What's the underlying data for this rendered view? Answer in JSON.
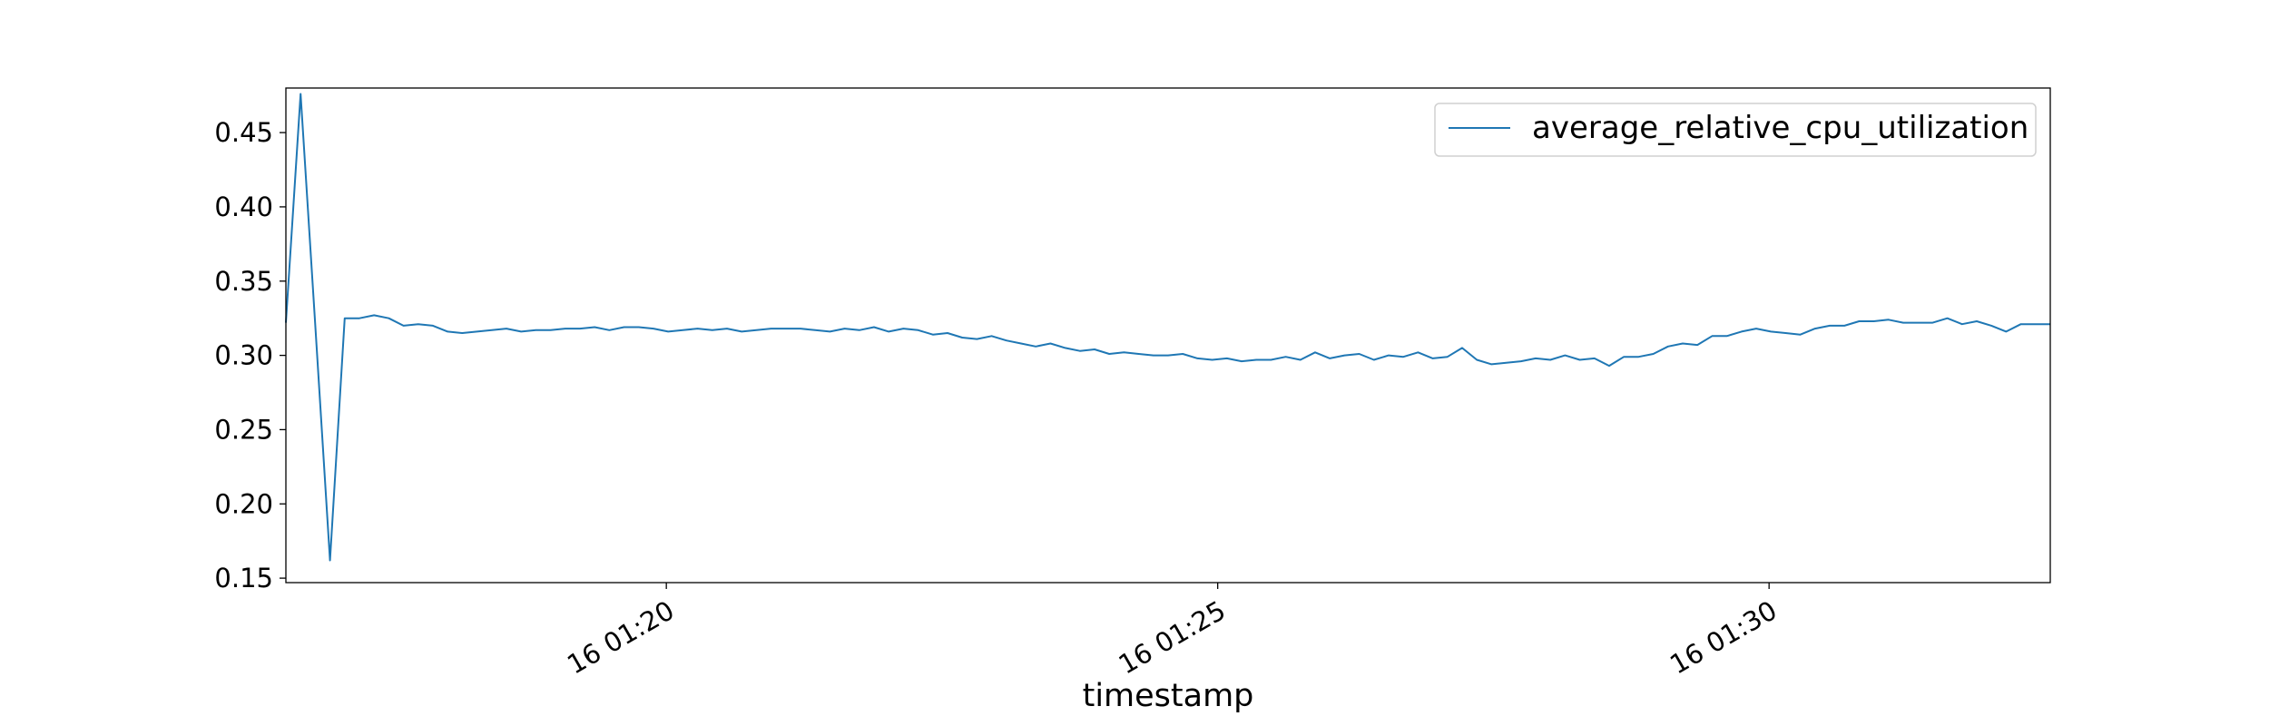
{
  "chart_data": {
    "type": "line",
    "xlabel": "timestamp",
    "ylabel": "",
    "title": "",
    "xlim": [
      "01:16:33",
      "01:32:33"
    ],
    "ylim": [
      0.147,
      0.48
    ],
    "x_ticks": [
      {
        "time": "01:20:00",
        "label": "16 01:20"
      },
      {
        "time": "01:25:00",
        "label": "16 01:25"
      },
      {
        "time": "01:30:00",
        "label": "16 01:30"
      }
    ],
    "y_ticks": [
      {
        "value": 0.15,
        "label": "0.15"
      },
      {
        "value": 0.2,
        "label": "0.20"
      },
      {
        "value": 0.25,
        "label": "0.25"
      },
      {
        "value": 0.3,
        "label": "0.30"
      },
      {
        "value": 0.35,
        "label": "0.35"
      },
      {
        "value": 0.4,
        "label": "0.40"
      },
      {
        "value": 0.45,
        "label": "0.45"
      }
    ],
    "grid": false,
    "legend": {
      "position": "top-right"
    },
    "series": [
      {
        "name": "average_relative_cpu_utilization",
        "color": "#1f77b4",
        "points": [
          [
            "01:16:33",
            0.322
          ],
          [
            "01:16:41",
            0.476
          ],
          [
            "01:16:49",
            0.32
          ],
          [
            "01:16:57",
            0.162
          ],
          [
            "01:17:05",
            0.325
          ],
          [
            "01:17:13",
            0.325
          ],
          [
            "01:17:21",
            0.327
          ],
          [
            "01:17:29",
            0.325
          ],
          [
            "01:17:37",
            0.32
          ],
          [
            "01:17:45",
            0.321
          ],
          [
            "01:17:53",
            0.32
          ],
          [
            "01:18:01",
            0.316
          ],
          [
            "01:18:09",
            0.315
          ],
          [
            "01:18:17",
            0.316
          ],
          [
            "01:18:25",
            0.317
          ],
          [
            "01:18:33",
            0.318
          ],
          [
            "01:18:41",
            0.316
          ],
          [
            "01:18:49",
            0.317
          ],
          [
            "01:18:57",
            0.317
          ],
          [
            "01:19:05",
            0.318
          ],
          [
            "01:19:13",
            0.318
          ],
          [
            "01:19:21",
            0.319
          ],
          [
            "01:19:29",
            0.317
          ],
          [
            "01:19:37",
            0.319
          ],
          [
            "01:19:45",
            0.319
          ],
          [
            "01:19:53",
            0.318
          ],
          [
            "01:20:01",
            0.316
          ],
          [
            "01:20:09",
            0.317
          ],
          [
            "01:20:17",
            0.318
          ],
          [
            "01:20:25",
            0.317
          ],
          [
            "01:20:33",
            0.318
          ],
          [
            "01:20:41",
            0.316
          ],
          [
            "01:20:49",
            0.317
          ],
          [
            "01:20:57",
            0.318
          ],
          [
            "01:21:05",
            0.318
          ],
          [
            "01:21:13",
            0.318
          ],
          [
            "01:21:21",
            0.317
          ],
          [
            "01:21:29",
            0.316
          ],
          [
            "01:21:37",
            0.318
          ],
          [
            "01:21:45",
            0.317
          ],
          [
            "01:21:53",
            0.319
          ],
          [
            "01:22:01",
            0.316
          ],
          [
            "01:22:09",
            0.318
          ],
          [
            "01:22:17",
            0.317
          ],
          [
            "01:22:25",
            0.314
          ],
          [
            "01:22:33",
            0.315
          ],
          [
            "01:22:41",
            0.312
          ],
          [
            "01:22:49",
            0.311
          ],
          [
            "01:22:57",
            0.313
          ],
          [
            "01:23:05",
            0.31
          ],
          [
            "01:23:13",
            0.308
          ],
          [
            "01:23:21",
            0.306
          ],
          [
            "01:23:29",
            0.308
          ],
          [
            "01:23:37",
            0.305
          ],
          [
            "01:23:45",
            0.303
          ],
          [
            "01:23:53",
            0.304
          ],
          [
            "01:24:01",
            0.301
          ],
          [
            "01:24:09",
            0.302
          ],
          [
            "01:24:17",
            0.301
          ],
          [
            "01:24:25",
            0.3
          ],
          [
            "01:24:33",
            0.3
          ],
          [
            "01:24:41",
            0.301
          ],
          [
            "01:24:49",
            0.298
          ],
          [
            "01:24:57",
            0.297
          ],
          [
            "01:25:05",
            0.298
          ],
          [
            "01:25:13",
            0.296
          ],
          [
            "01:25:21",
            0.297
          ],
          [
            "01:25:29",
            0.297
          ],
          [
            "01:25:37",
            0.299
          ],
          [
            "01:25:45",
            0.297
          ],
          [
            "01:25:53",
            0.302
          ],
          [
            "01:26:01",
            0.298
          ],
          [
            "01:26:09",
            0.3
          ],
          [
            "01:26:17",
            0.301
          ],
          [
            "01:26:25",
            0.297
          ],
          [
            "01:26:33",
            0.3
          ],
          [
            "01:26:41",
            0.299
          ],
          [
            "01:26:49",
            0.302
          ],
          [
            "01:26:57",
            0.298
          ],
          [
            "01:27:05",
            0.299
          ],
          [
            "01:27:13",
            0.305
          ],
          [
            "01:27:21",
            0.297
          ],
          [
            "01:27:29",
            0.294
          ],
          [
            "01:27:37",
            0.295
          ],
          [
            "01:27:45",
            0.296
          ],
          [
            "01:27:53",
            0.298
          ],
          [
            "01:28:01",
            0.297
          ],
          [
            "01:28:09",
            0.3
          ],
          [
            "01:28:17",
            0.297
          ],
          [
            "01:28:25",
            0.298
          ],
          [
            "01:28:33",
            0.293
          ],
          [
            "01:28:41",
            0.299
          ],
          [
            "01:28:49",
            0.299
          ],
          [
            "01:28:57",
            0.301
          ],
          [
            "01:29:05",
            0.306
          ],
          [
            "01:29:13",
            0.308
          ],
          [
            "01:29:21",
            0.307
          ],
          [
            "01:29:29",
            0.313
          ],
          [
            "01:29:37",
            0.313
          ],
          [
            "01:29:45",
            0.316
          ],
          [
            "01:29:53",
            0.318
          ],
          [
            "01:30:01",
            0.316
          ],
          [
            "01:30:09",
            0.315
          ],
          [
            "01:30:17",
            0.314
          ],
          [
            "01:30:25",
            0.318
          ],
          [
            "01:30:33",
            0.32
          ],
          [
            "01:30:41",
            0.32
          ],
          [
            "01:30:49",
            0.323
          ],
          [
            "01:30:57",
            0.323
          ],
          [
            "01:31:05",
            0.324
          ],
          [
            "01:31:13",
            0.322
          ],
          [
            "01:31:21",
            0.322
          ],
          [
            "01:31:29",
            0.322
          ],
          [
            "01:31:37",
            0.325
          ],
          [
            "01:31:45",
            0.321
          ],
          [
            "01:31:53",
            0.323
          ],
          [
            "01:32:01",
            0.32
          ],
          [
            "01:32:09",
            0.316
          ],
          [
            "01:32:17",
            0.321
          ],
          [
            "01:32:25",
            0.321
          ],
          [
            "01:32:33",
            0.321
          ]
        ]
      }
    ]
  }
}
